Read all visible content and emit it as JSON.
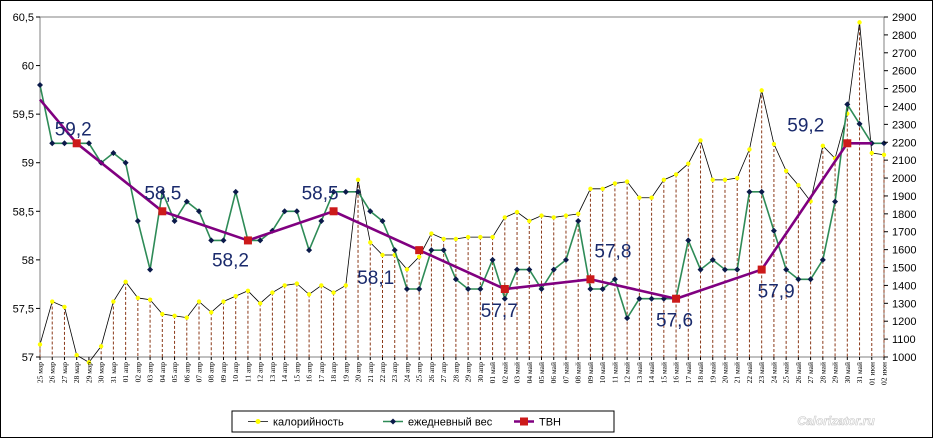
{
  "chart_data": {
    "type": "line",
    "x": [
      "25 мар",
      "26 мар",
      "27 мар",
      "28 мар",
      "29 мар",
      "30 мар",
      "31 мар",
      "01 апр",
      "02 апр",
      "03 апр",
      "04 апр",
      "05 апр",
      "06 апр",
      "07 апр",
      "08 апр",
      "09 апр",
      "10 апр",
      "11 апр",
      "12 апр",
      "13 апр",
      "14 апр",
      "15 апр",
      "16 апр",
      "17 апр",
      "18 апр",
      "19 апр",
      "20 апр",
      "21 апр",
      "22 апр",
      "23 апр",
      "24 апр",
      "25 апр",
      "26 апр",
      "27 апр",
      "28 апр",
      "29 апр",
      "30 апр",
      "01 май",
      "02 май",
      "03 май",
      "04 май",
      "05 май",
      "06 май",
      "07 май",
      "08 май",
      "09 май",
      "10 май",
      "11 май",
      "12 май",
      "13 май",
      "14 май",
      "15 май",
      "16 май",
      "17 май",
      "18 май",
      "19 май",
      "20 май",
      "21 май",
      "22 май",
      "23 май",
      "24 май",
      "25 май",
      "26 май",
      "27 май",
      "28 май",
      "29 май",
      "30 май",
      "31 май",
      "01 июн",
      "02 июн"
    ],
    "y_left_ticks": [
      "57",
      "57,5",
      "58",
      "58,5",
      "59",
      "59,5",
      "60",
      "60,5"
    ],
    "y_left_range": [
      57,
      60.5
    ],
    "y_right_ticks": [
      "1000",
      "1100",
      "1200",
      "1300",
      "1400",
      "1500",
      "1600",
      "1700",
      "1800",
      "1900",
      "2000",
      "2100",
      "2200",
      "2300",
      "2400",
      "2500",
      "2600",
      "2700",
      "2800",
      "2900"
    ],
    "y_right_range": [
      1000,
      2900
    ],
    "series": [
      {
        "name": "калорийность",
        "axis": "right",
        "color": "#ffff00",
        "values": [
          1070,
          1310,
          1280,
          1010,
          970,
          1060,
          1310,
          1420,
          1330,
          1320,
          1240,
          1230,
          1220,
          1310,
          1250,
          1310,
          1340,
          1370,
          1300,
          1360,
          1400,
          1410,
          1350,
          1400,
          1360,
          1400,
          1990,
          1640,
          1570,
          1570,
          1490,
          1560,
          1690,
          1660,
          1660,
          1670,
          1670,
          1670,
          1780,
          1810,
          1760,
          1790,
          1780,
          1790,
          1800,
          1940,
          1940,
          1970,
          1980,
          1890,
          1890,
          1990,
          2020,
          2080,
          2210,
          1990,
          1990,
          2000,
          2160,
          2490,
          2190,
          2040,
          1960,
          1870,
          2180,
          2110,
          2360,
          2870,
          2140,
          2130
        ]
      },
      {
        "name": "ежедневный вес",
        "axis": "left",
        "values": [
          59.8,
          59.2,
          59.2,
          59.2,
          59.2,
          59,
          59.1,
          59,
          58.4,
          57.9,
          58.7,
          58.4,
          58.6,
          58.5,
          58.2,
          58.2,
          58.7,
          58.2,
          58.2,
          58.3,
          58.5,
          58.5,
          58.1,
          58.4,
          58.7,
          58.7,
          58.7,
          58.5,
          58.4,
          58.1,
          57.7,
          57.7,
          58.1,
          58.1,
          57.8,
          57.7,
          57.7,
          58,
          57.6,
          57.9,
          57.9,
          57.7,
          57.9,
          58,
          58.4,
          57.7,
          57.7,
          57.8,
          57.4,
          57.6,
          57.6,
          57.6,
          57.6,
          58.2,
          57.9,
          58,
          57.9,
          57.9,
          58.7,
          58.7,
          58.3,
          57.9,
          57.8,
          57.8,
          58,
          58.6,
          59.6,
          59.4,
          59.2,
          59.2
        ]
      },
      {
        "name": "ТВН",
        "axis": "left",
        "color": "#800080",
        "points": [
          {
            "i": 0,
            "value": 59.65
          },
          {
            "i": 3,
            "value": 59.2
          },
          {
            "i": 10,
            "value": 58.5
          },
          {
            "i": 17,
            "value": 58.2
          },
          {
            "i": 24,
            "value": 58.5
          },
          {
            "i": 31,
            "value": 58.1
          },
          {
            "i": 38,
            "value": 57.7
          },
          {
            "i": 45,
            "value": 57.8
          },
          {
            "i": 52,
            "value": 57.6
          },
          {
            "i": 59,
            "value": 57.9
          },
          {
            "i": 66,
            "value": 59.2
          },
          {
            "i": 67,
            "value": 59.2
          },
          {
            "i": 68,
            "value": 59.2
          }
        ],
        "markers": [
          3,
          10,
          17,
          24,
          31,
          38,
          45,
          52,
          59,
          66
        ]
      }
    ],
    "annotations": [
      {
        "text": "59,2",
        "i": 3
      },
      {
        "text": "58,5",
        "i": 10
      },
      {
        "text": "58,2",
        "i": 17
      },
      {
        "text": "58,5",
        "i": 24
      },
      {
        "text": "58,1",
        "i": 31
      },
      {
        "text": "57,7",
        "i": 38
      },
      {
        "text": "57,8",
        "i": 45
      },
      {
        "text": "57,6",
        "i": 52
      },
      {
        "text": "57,9",
        "i": 59
      },
      {
        "text": "59,2",
        "i": 66
      }
    ],
    "legend": [
      {
        "name": "калорийность"
      },
      {
        "name": "ежедневный вес"
      },
      {
        "name": "ТВН"
      }
    ],
    "watermark": "Calorizator.ru",
    "grid": false
  }
}
